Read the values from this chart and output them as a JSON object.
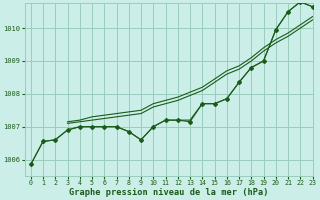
{
  "title": "Graphe pression niveau de la mer (hPa)",
  "background_color": "#cceee8",
  "grid_color": "#99ccbb",
  "line_color": "#1a5c1a",
  "xlim": [
    -0.5,
    23
  ],
  "ylim": [
    1005.5,
    1010.75
  ],
  "yticks": [
    1006,
    1007,
    1008,
    1009,
    1010
  ],
  "xticks": [
    0,
    1,
    2,
    3,
    4,
    5,
    6,
    7,
    8,
    9,
    10,
    11,
    12,
    13,
    14,
    15,
    16,
    17,
    18,
    19,
    20,
    21,
    22,
    23
  ],
  "series": [
    {
      "x": [
        0,
        1,
        2,
        3,
        4,
        5,
        6,
        7,
        8,
        9,
        10,
        11,
        12,
        13,
        14,
        15,
        16,
        17,
        18,
        19,
        20,
        21,
        22,
        23
      ],
      "y": [
        1005.85,
        1006.55,
        1006.6,
        1006.9,
        1007.0,
        1007.0,
        1007.0,
        1007.0,
        1006.85,
        1006.6,
        1007.0,
        1007.2,
        1007.2,
        1007.15,
        1007.7,
        1007.7,
        1007.85,
        1008.35,
        1008.8,
        1009.0,
        1009.95,
        1010.5,
        1010.8,
        1010.65
      ],
      "marker": true
    },
    {
      "x": [
        0,
        1,
        2,
        3,
        4,
        5,
        6,
        7,
        8,
        9,
        10,
        11,
        12,
        13,
        14,
        15,
        16,
        17,
        18,
        19,
        20,
        21,
        22,
        23
      ],
      "y": [
        1005.85,
        1006.55,
        1006.6,
        1006.9,
        1007.0,
        1007.0,
        1007.0,
        1007.0,
        1006.85,
        1006.6,
        1007.0,
        1007.2,
        1007.2,
        1007.2,
        1007.7,
        1007.7,
        1007.85,
        1008.35,
        1008.8,
        1009.0,
        1009.95,
        1010.5,
        1010.8,
        1010.65
      ],
      "marker": false
    },
    {
      "x": [
        3,
        4,
        5,
        6,
        7,
        8,
        9,
        10,
        11,
        12,
        13,
        14,
        15,
        16,
        17,
        18,
        19,
        20,
        21,
        22,
        23
      ],
      "y": [
        1007.1,
        1007.15,
        1007.2,
        1007.25,
        1007.3,
        1007.35,
        1007.4,
        1007.6,
        1007.7,
        1007.8,
        1007.95,
        1008.1,
        1008.35,
        1008.6,
        1008.75,
        1009.0,
        1009.3,
        1009.55,
        1009.75,
        1010.0,
        1010.25
      ],
      "marker": false
    },
    {
      "x": [
        3,
        4,
        5,
        6,
        7,
        8,
        9,
        10,
        11,
        12,
        13,
        14,
        15,
        16,
        17,
        18,
        19,
        20,
        21,
        22,
        23
      ],
      "y": [
        1007.15,
        1007.2,
        1007.3,
        1007.35,
        1007.4,
        1007.45,
        1007.5,
        1007.7,
        1007.8,
        1007.9,
        1008.05,
        1008.2,
        1008.45,
        1008.7,
        1008.85,
        1009.1,
        1009.4,
        1009.65,
        1009.85,
        1010.1,
        1010.35
      ],
      "marker": false
    }
  ]
}
